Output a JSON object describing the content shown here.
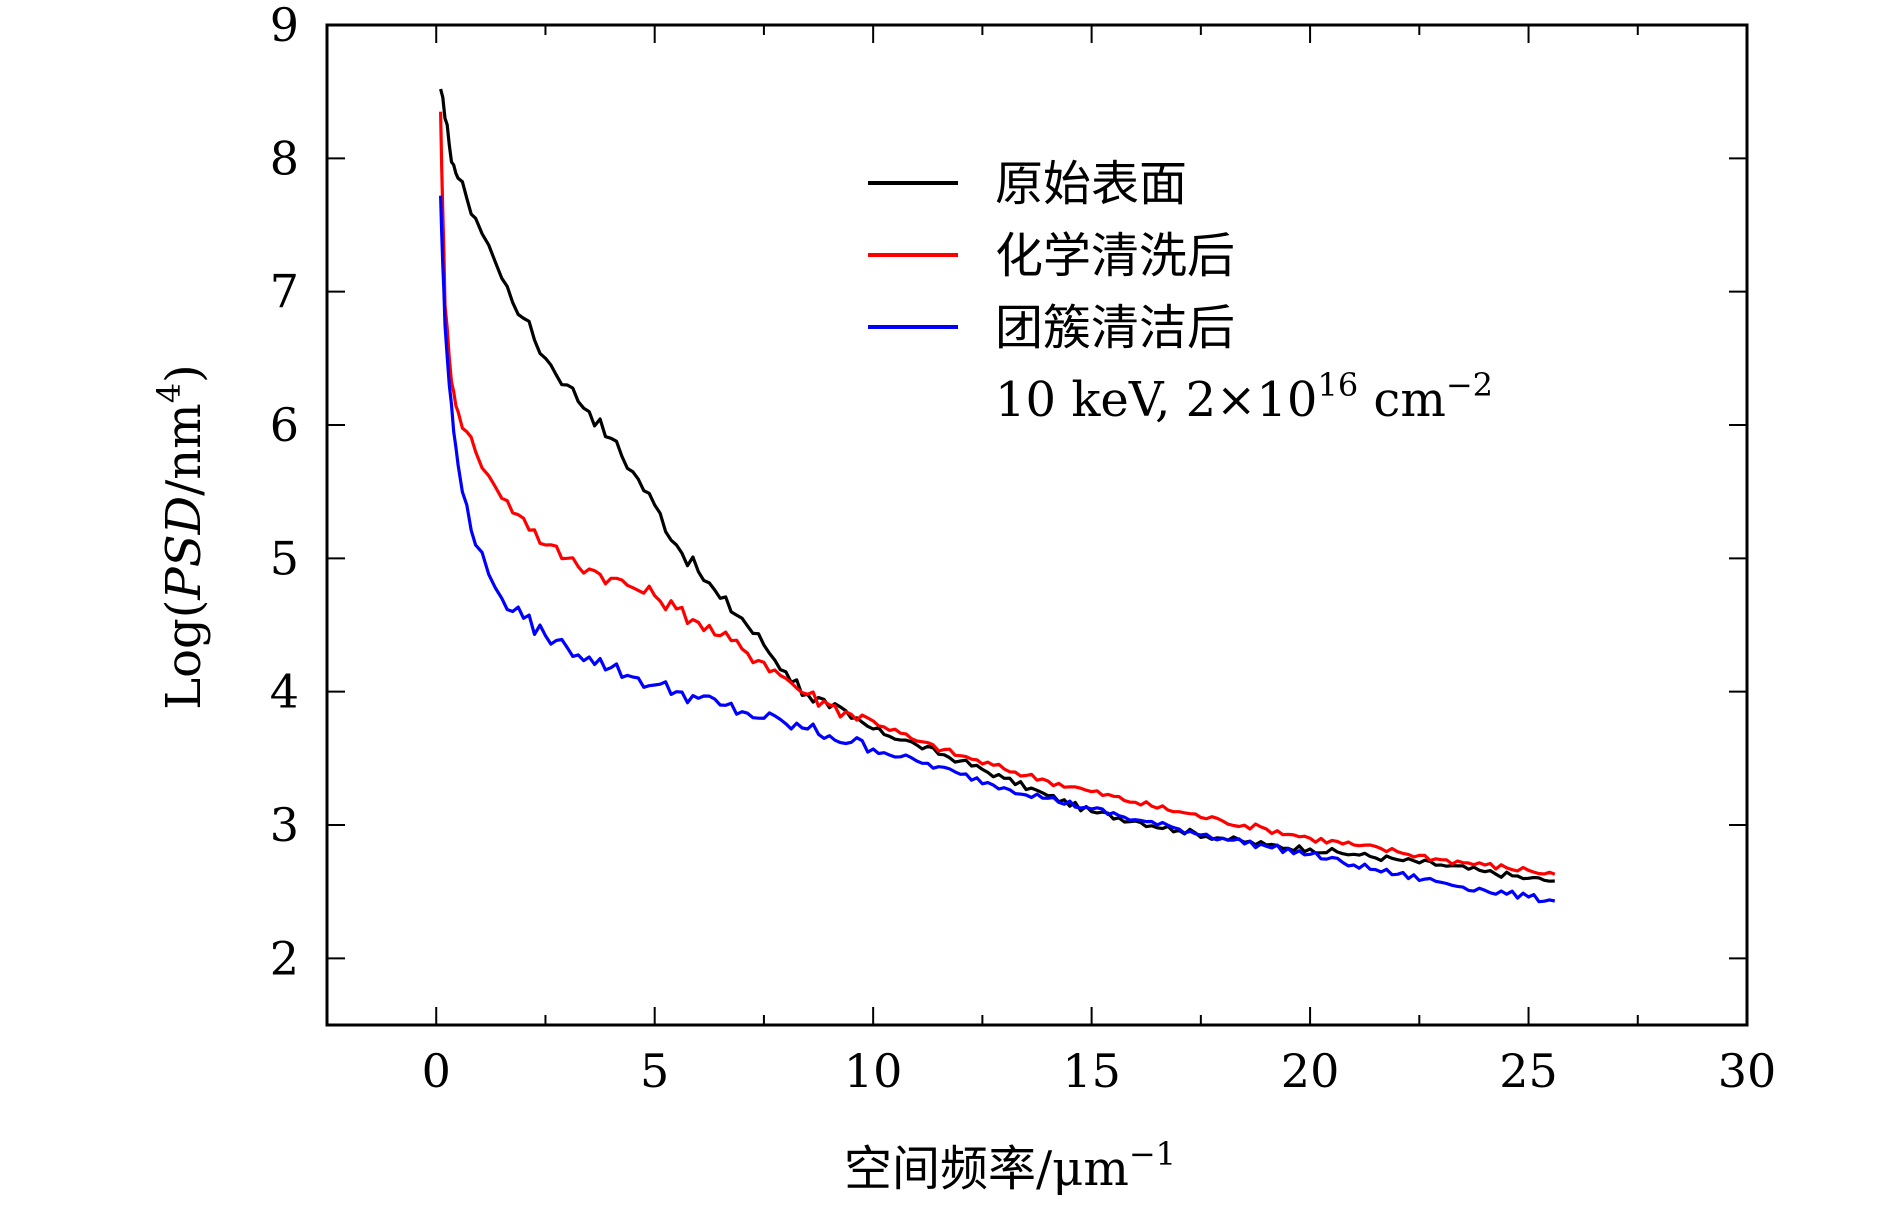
{
  "chart_data": {
    "type": "line",
    "title": "",
    "xlabel": "空间频率/μm",
    "xlabel_sup": "−1",
    "ylabel_prefix": "Log(",
    "ylabel_italic": "PSD",
    "ylabel_unit": "/nm",
    "ylabel_sup": "4",
    "ylabel_suffix": ")",
    "xlim": [
      -2.5,
      30
    ],
    "ylim": [
      1.5,
      9
    ],
    "xticks": [
      0,
      5,
      10,
      15,
      20,
      25,
      30
    ],
    "yticks": [
      2,
      3,
      4,
      5,
      6,
      7,
      8,
      9
    ],
    "grid": false,
    "legend_position": "top-right",
    "legend_note": {
      "prefix": "10 keV, 2×10",
      "sup1": "16",
      "middle": " cm",
      "sup2": "−2"
    },
    "series": [
      {
        "name": "原始表面",
        "color": "#000000",
        "x": [
          0.1,
          0.2,
          0.3,
          0.4,
          0.5,
          0.7,
          0.9,
          1.2,
          1.5,
          2,
          2.5,
          3,
          3.5,
          4,
          4.5,
          5,
          5.5,
          6,
          6.5,
          7,
          7.5,
          8,
          8.5,
          9,
          9.5,
          10,
          11,
          12,
          13,
          14,
          15,
          16,
          17,
          18,
          19,
          20,
          21,
          22,
          23,
          24,
          25,
          25.6
        ],
        "y": [
          8.52,
          8.3,
          8.1,
          7.95,
          7.85,
          7.7,
          7.55,
          7.35,
          7.1,
          6.8,
          6.5,
          6.3,
          6.1,
          5.9,
          5.65,
          5.4,
          5.1,
          4.9,
          4.7,
          4.55,
          4.35,
          4.15,
          3.98,
          3.88,
          3.8,
          3.72,
          3.6,
          3.48,
          3.35,
          3.22,
          3.1,
          3.03,
          2.96,
          2.9,
          2.85,
          2.82,
          2.78,
          2.74,
          2.7,
          2.65,
          2.6,
          2.58
        ]
      },
      {
        "name": "化学清洗后",
        "color": "#ff0000",
        "x": [
          0.1,
          0.15,
          0.2,
          0.3,
          0.4,
          0.5,
          0.7,
          0.9,
          1.2,
          1.5,
          2,
          2.5,
          3,
          3.5,
          4,
          4.5,
          5,
          5.5,
          6,
          6.5,
          7,
          7.5,
          8,
          8.5,
          9,
          9.5,
          10,
          11,
          12,
          13,
          14,
          15,
          16,
          17,
          18,
          19,
          20,
          21,
          22,
          23,
          24,
          25,
          25.6
        ],
        "y": [
          8.35,
          7.6,
          6.9,
          6.5,
          6.25,
          6.1,
          5.95,
          5.8,
          5.62,
          5.45,
          5.3,
          5.1,
          5.0,
          4.92,
          4.85,
          4.78,
          4.72,
          4.62,
          4.52,
          4.42,
          4.32,
          4.22,
          4.1,
          3.98,
          3.9,
          3.83,
          3.78,
          3.63,
          3.52,
          3.42,
          3.33,
          3.25,
          3.17,
          3.1,
          3.03,
          2.97,
          2.9,
          2.85,
          2.8,
          2.74,
          2.7,
          2.66,
          2.63
        ]
      },
      {
        "name": "团簇清洁后",
        "color": "#0000ff",
        "x": [
          0.1,
          0.15,
          0.2,
          0.3,
          0.4,
          0.5,
          0.7,
          0.9,
          1.2,
          1.5,
          2,
          2.5,
          3,
          3.5,
          4,
          4.5,
          5,
          5.5,
          6,
          6.5,
          7,
          7.5,
          8,
          8.5,
          9,
          9.5,
          10,
          11,
          12,
          13,
          14,
          15,
          16,
          17,
          18,
          19,
          20,
          21,
          22,
          23,
          24,
          25,
          25.6
        ],
        "y": [
          7.72,
          7.2,
          6.75,
          6.3,
          5.95,
          5.7,
          5.4,
          5.1,
          4.88,
          4.7,
          4.55,
          4.42,
          4.33,
          4.26,
          4.18,
          4.11,
          4.05,
          4.0,
          3.95,
          3.9,
          3.85,
          3.8,
          3.76,
          3.72,
          3.67,
          3.62,
          3.57,
          3.48,
          3.38,
          3.28,
          3.2,
          3.12,
          3.04,
          2.97,
          2.9,
          2.84,
          2.78,
          2.7,
          2.63,
          2.57,
          2.51,
          2.46,
          2.43
        ]
      }
    ]
  }
}
